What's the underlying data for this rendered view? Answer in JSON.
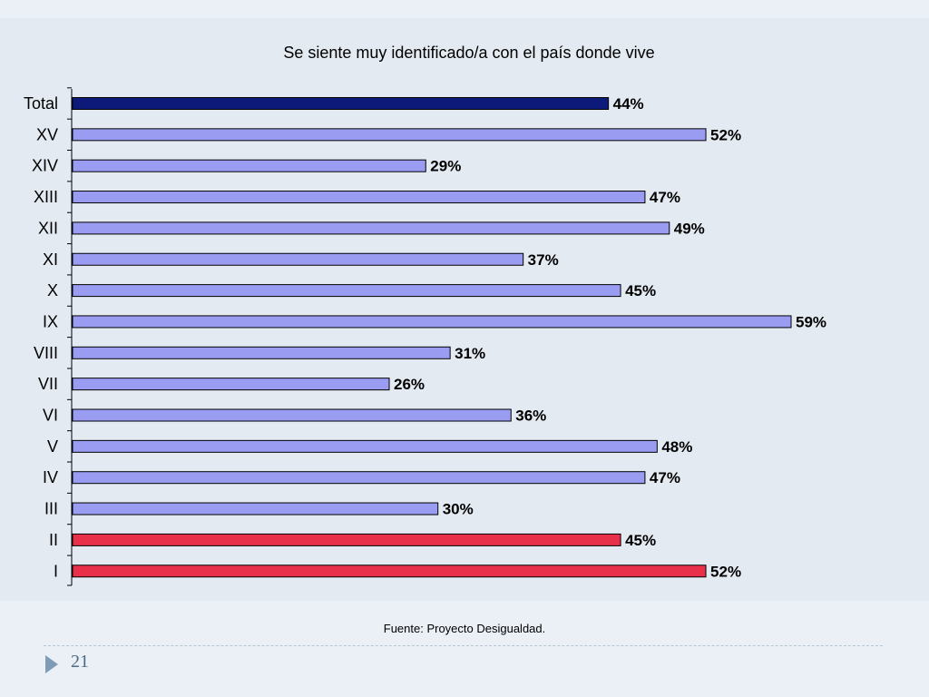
{
  "chart_data": {
    "type": "bar",
    "orientation": "horizontal",
    "title": "Se siente muy identificado/a con el país donde vive",
    "categories": [
      "Total",
      "XV",
      "XIV",
      "XIII",
      "XII",
      "XI",
      "X",
      "IX",
      "VIII",
      "VII",
      "VI",
      "V",
      "IV",
      "III",
      "II",
      "I"
    ],
    "values": [
      44,
      52,
      29,
      47,
      49,
      37,
      45,
      59,
      31,
      26,
      36,
      48,
      47,
      30,
      45,
      52
    ],
    "value_labels": [
      "44%",
      "52%",
      "29%",
      "47%",
      "49%",
      "37%",
      "45%",
      "59%",
      "31%",
      "26%",
      "36%",
      "48%",
      "47%",
      "30%",
      "45%",
      "52%"
    ],
    "unit": "%",
    "xlim": [
      0,
      59
    ],
    "grid": false,
    "legend": "none",
    "colors": {
      "total": "#0d1a7a",
      "default": "#9a9cf2",
      "highlight": "#e8304a"
    },
    "highlighted_categories": [
      "II",
      "I"
    ]
  },
  "footer": {
    "source": "Fuente: Proyecto Desigualdad.",
    "page_number": "21"
  }
}
